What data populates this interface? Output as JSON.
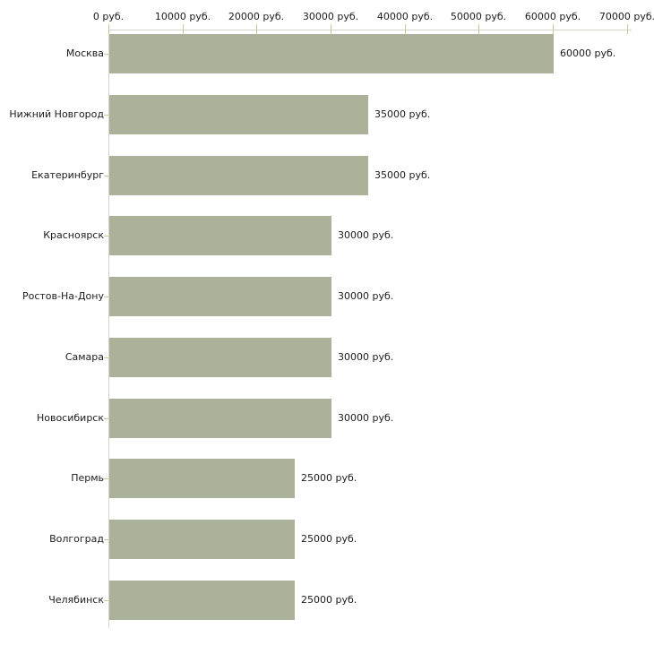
{
  "chart_data": {
    "type": "bar",
    "orientation": "horizontal",
    "title": "",
    "categories": [
      "Москва",
      "Нижний Новгород",
      "Екатеринбург",
      "Красноярск",
      "Ростов-На-Дону",
      "Самара",
      "Новосибирск",
      "Пермь",
      "Волгоград",
      "Челябинск"
    ],
    "values": [
      60000,
      35000,
      35000,
      30000,
      30000,
      30000,
      30000,
      25000,
      25000,
      25000
    ],
    "bar_labels": [
      "60000 руб.",
      "35000 руб.",
      "35000 руб.",
      "30000 руб.",
      "30000 руб.",
      "30000 руб.",
      "30000 руб.",
      "25000 руб.",
      "25000 руб.",
      "25000 руб."
    ],
    "x_axis": {
      "position": "top",
      "range": [
        0,
        70000
      ],
      "ticks": [
        0,
        10000,
        20000,
        30000,
        40000,
        50000,
        60000,
        70000
      ],
      "tick_labels": [
        "0 руб.",
        "10000 руб.",
        "20000 руб.",
        "30000 руб.",
        "40000 руб.",
        "50000 руб.",
        "60000 руб.",
        "70000 руб."
      ]
    },
    "grid": false,
    "legend": null
  },
  "colors": {
    "bar": "#acb29a",
    "axis_line": "#d5d5cd",
    "tick": "#c9c99a",
    "text": "#1c1c1c",
    "background": "#ffffff"
  }
}
